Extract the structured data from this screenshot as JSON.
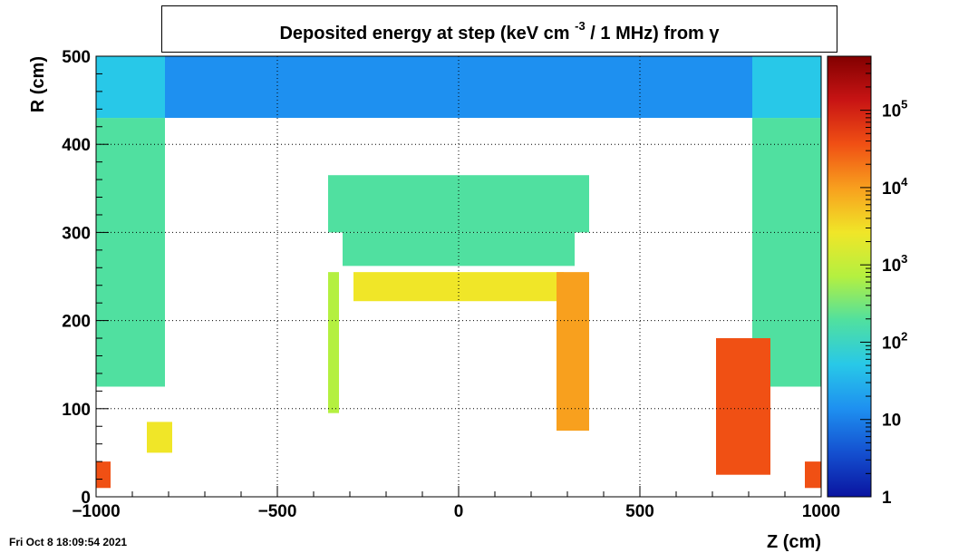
{
  "chart_data": {
    "type": "heatmap",
    "title_prefix": "Deposited energy at step (keV cm",
    "title_exponent": "-3",
    "title_suffix": " / 1 MHz)  from  γ",
    "xlabel": "Z (cm)",
    "ylabel": "R (cm)",
    "xlim": [
      -1000,
      1000
    ],
    "ylim": [
      0,
      500
    ],
    "x_ticks": [
      {
        "value": -1000,
        "label": "−1000"
      },
      {
        "value": -500,
        "label": "−500"
      },
      {
        "value": 0,
        "label": "0"
      },
      {
        "value": 500,
        "label": "500"
      },
      {
        "value": 1000,
        "label": "1000"
      }
    ],
    "y_ticks": [
      {
        "value": 0,
        "label": "0"
      },
      {
        "value": 100,
        "label": "100"
      },
      {
        "value": 200,
        "label": "200"
      },
      {
        "value": 300,
        "label": "300"
      },
      {
        "value": 400,
        "label": "400"
      },
      {
        "value": 500,
        "label": "500"
      }
    ],
    "grid": true,
    "colorbar": {
      "scale": "log",
      "range": [
        1,
        500000
      ],
      "ticks": [
        {
          "value": 1,
          "base": "1",
          "exp": ""
        },
        {
          "value": 10,
          "base": "10",
          "exp": ""
        },
        {
          "value": 100,
          "base": "10",
          "exp": "2"
        },
        {
          "value": 1000,
          "base": "10",
          "exp": "3"
        },
        {
          "value": 10000,
          "base": "10",
          "exp": "4"
        },
        {
          "value": 100000,
          "base": "10",
          "exp": "5"
        }
      ],
      "colors": [
        "#0a14a0",
        "#1450d0",
        "#1e90f0",
        "#28c8e8",
        "#50e0a0",
        "#b4f040",
        "#f0e628",
        "#f8a01e",
        "#f05014",
        "#c81414",
        "#820000"
      ]
    },
    "regions": [
      {
        "name": "endcap-top-left",
        "z": [
          -1000,
          -810
        ],
        "r": [
          430,
          500
        ],
        "level": 60
      },
      {
        "name": "endcap-top-right",
        "z": [
          810,
          1000
        ],
        "r": [
          430,
          500
        ],
        "level": 60
      },
      {
        "name": "top-band",
        "z": [
          -810,
          810
        ],
        "r": [
          430,
          500
        ],
        "level": 25
      },
      {
        "name": "left-column",
        "z": [
          -1000,
          -810
        ],
        "r": [
          125,
          430
        ],
        "level": 120
      },
      {
        "name": "right-column",
        "z": [
          810,
          1000
        ],
        "r": [
          125,
          430
        ],
        "level": 120
      },
      {
        "name": "upper-block",
        "z": [
          -360,
          360
        ],
        "r": [
          300,
          365
        ],
        "level": 150
      },
      {
        "name": "sector-bars",
        "z": [
          -320,
          320
        ],
        "r": [
          262,
          300
        ],
        "level": 200
      },
      {
        "name": "upper-trapezoid",
        "z": [
          -290,
          290
        ],
        "r": [
          222,
          255
        ],
        "level": 2500
      },
      {
        "name": "left-inner-wall",
        "z": [
          -360,
          -330
        ],
        "r": [
          95,
          255
        ],
        "level": 900
      },
      {
        "name": "right-inner-wall",
        "z": [
          270,
          360
        ],
        "r": [
          75,
          255
        ],
        "level": 12000
      },
      {
        "name": "right-forward-block",
        "z": [
          710,
          860
        ],
        "r": [
          25,
          180
        ],
        "level": 30000
      },
      {
        "name": "left-small-block",
        "z": [
          -860,
          -790
        ],
        "r": [
          50,
          85
        ],
        "level": 3000
      },
      {
        "name": "left-bottom-hot",
        "z": [
          -1000,
          -960
        ],
        "r": [
          10,
          40
        ],
        "level": 50000
      },
      {
        "name": "right-bottom-hot",
        "z": [
          955,
          1000
        ],
        "r": [
          10,
          40
        ],
        "level": 40000
      }
    ]
  },
  "footer": {
    "timestamp": "Fri Oct  8 18:09:54 2021"
  }
}
